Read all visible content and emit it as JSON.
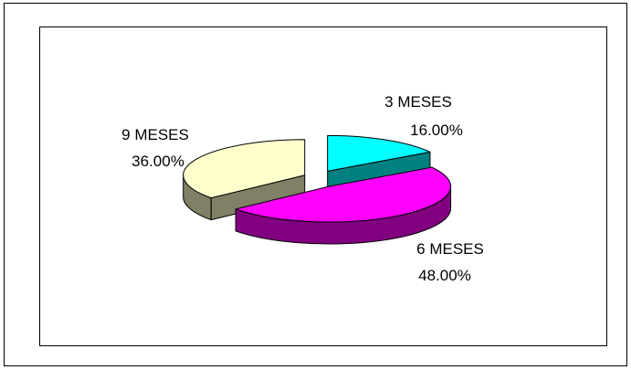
{
  "chart_data": {
    "type": "pie",
    "title": "",
    "categories": [
      "3 MESES",
      "6 MESES",
      "9 MESES"
    ],
    "values": [
      16,
      48,
      36
    ],
    "labels": [
      {
        "name": "3 MESES",
        "value": "16.00%"
      },
      {
        "name": "6 MESES",
        "value": "48.00%"
      },
      {
        "name": "9 MESES",
        "value": "36.00%"
      }
    ],
    "colors": {
      "3 MESES": {
        "top": "#00FFFF",
        "side": "#008080"
      },
      "6 MESES": {
        "top": "#FF00FF",
        "side": "#800080"
      },
      "9 MESES": {
        "top": "#FFFFCC",
        "side": "#808066"
      }
    },
    "style": "3d-exploded",
    "legend": "none"
  }
}
